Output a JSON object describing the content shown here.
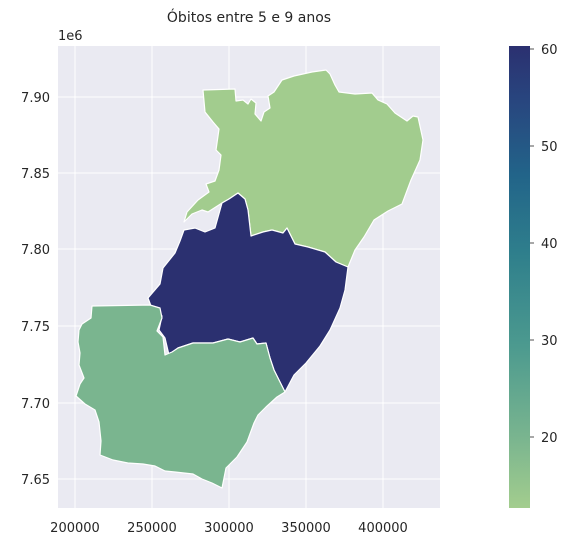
{
  "title": "Óbitos entre 5 e 9 anos",
  "offset_label": "1e6",
  "x_ticks": [
    "200000",
    "250000",
    "300000",
    "350000",
    "400000"
  ],
  "y_ticks": [
    "7.65",
    "7.70",
    "7.75",
    "7.80",
    "7.85",
    "7.90"
  ],
  "colorbar": {
    "ticks": [
      "20",
      "30",
      "40",
      "50",
      "60"
    ],
    "min": 12,
    "max": 60,
    "colormap": "crest"
  },
  "chart_data": {
    "type": "choropleth",
    "title": "Óbitos entre 5 e 9 anos",
    "xlim": [
      188000,
      438000
    ],
    "ylim": [
      7628000,
      7934000
    ],
    "regions": [
      {
        "id": "north",
        "value": 13,
        "color": "#a2cc8e"
      },
      {
        "id": "central",
        "value": 60,
        "color": "#2b3070"
      },
      {
        "id": "southwest",
        "value": 20,
        "color": "#7ab58f"
      }
    ],
    "grid": true,
    "axis_background": "#eaeaf2"
  }
}
